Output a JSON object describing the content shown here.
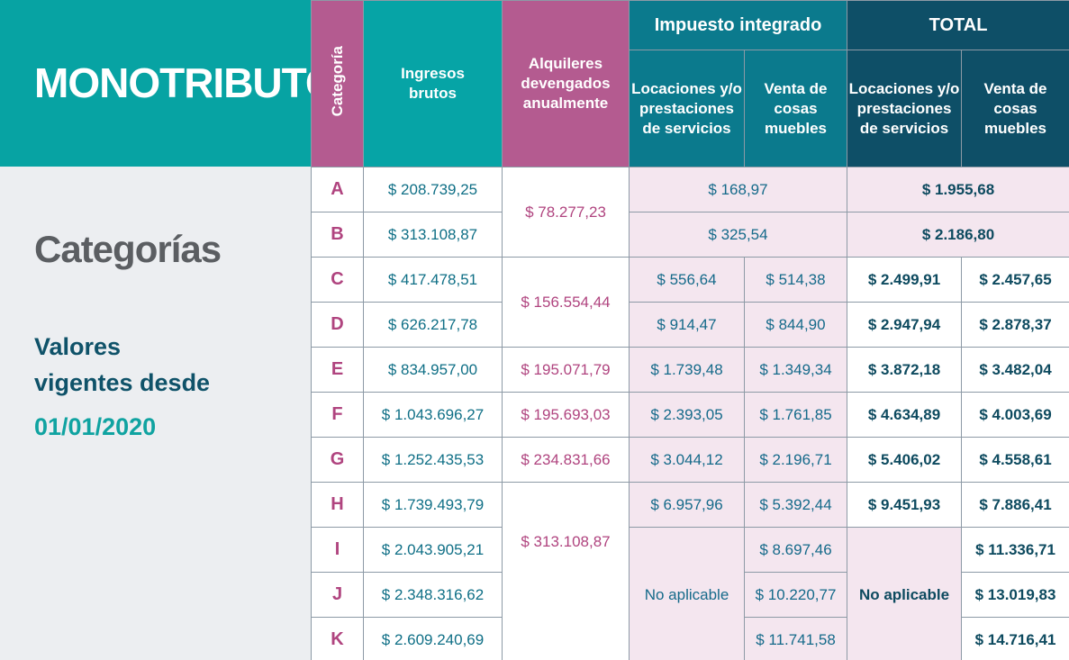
{
  "header": {
    "title": "MONOTRIBUTO"
  },
  "sidebar": {
    "heading": "Categorías",
    "note": "Valores vigentes desde",
    "date": "01/01/2020"
  },
  "table": {
    "header": {
      "categoria": "Categoría",
      "ingresos": "Ingresos brutos",
      "alquileres": "Alquileres devengados anualmente",
      "impuesto": "Impuesto integrado",
      "total": "TOTAL",
      "impuesto_locaciones": "Locaciones y/o prestaciones de servicios",
      "impuesto_venta": "Venta de cosas muebles",
      "total_locaciones": "Locaciones y/o prestaciones de servicios",
      "total_venta": "Venta de cosas muebles"
    },
    "rows": [
      [
        "A",
        "$ 208.739,25",
        "$ 78.277,23",
        "$ 168,97",
        null,
        "$ 1.955,68",
        null
      ],
      [
        "B",
        "$ 313.108,87",
        null,
        "$ 325,54",
        null,
        "$ 2.186,80",
        null
      ],
      [
        "C",
        "$ 417.478,51",
        "$ 156.554,44",
        "$ 556,64",
        "$ 514,38",
        "$ 2.499,91",
        "$ 2.457,65"
      ],
      [
        "D",
        "$ 626.217,78",
        null,
        "$ 914,47",
        "$ 844,90",
        "$ 2.947,94",
        "$ 2.878,37"
      ],
      [
        "E",
        "$ 834.957,00",
        "$ 195.071,79",
        "$ 1.739,48",
        "$ 1.349,34",
        "$ 3.872,18",
        "$ 3.482,04"
      ],
      [
        "F",
        "$ 1.043.696,27",
        "$ 195.693,03",
        "$ 2.393,05",
        "$ 1.761,85",
        "$ 4.634,89",
        "$ 4.003,69"
      ],
      [
        "G",
        "$ 1.252.435,53",
        "$ 234.831,66",
        "$ 3.044,12",
        "$ 2.196,71",
        "$ 5.406,02",
        "$ 4.558,61"
      ],
      [
        "H",
        "$ 1.739.493,79",
        "$ 313.108,87",
        "$ 6.957,96",
        "$ 5.392,44",
        "$ 9.451,93",
        "$ 7.886,41"
      ],
      [
        "I",
        "$ 2.043.905,21",
        null,
        "No aplicable",
        "$ 8.697,46",
        "No aplicable",
        "$ 11.336,71"
      ],
      [
        "J",
        "$ 2.348.316,62",
        null,
        null,
        "$ 10.220,77",
        null,
        "$ 13.019,83"
      ],
      [
        "K",
        "$ 2.609.240,69",
        null,
        null,
        "$ 11.741,58",
        null,
        "$ 14.716,41"
      ]
    ]
  }
}
